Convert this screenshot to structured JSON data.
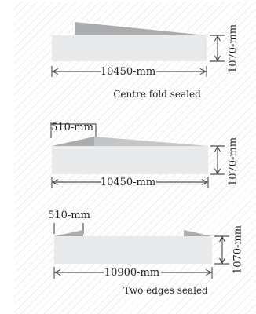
{
  "colors": {
    "background": "#ffffff",
    "hatch": "#e3e3e3",
    "panel": "#e8e9ea",
    "fold": "#a9abad",
    "fold_light": "#c3c5c7",
    "line": "#222222"
  },
  "diagrams": [
    {
      "id": "centre-fold",
      "length_label": "10450-mm",
      "height_label": "1070-mm",
      "fold_label": "",
      "caption": "Centre fold sealed"
    },
    {
      "id": "single-edge",
      "length_label": "10450-mm",
      "height_label": "1070-mm",
      "fold_label": "510-mm",
      "caption": ""
    },
    {
      "id": "two-edges",
      "length_label": "10900-mm",
      "height_label": "1070-mm",
      "fold_label": "510-mm",
      "caption": "Two edges sealed"
    }
  ]
}
